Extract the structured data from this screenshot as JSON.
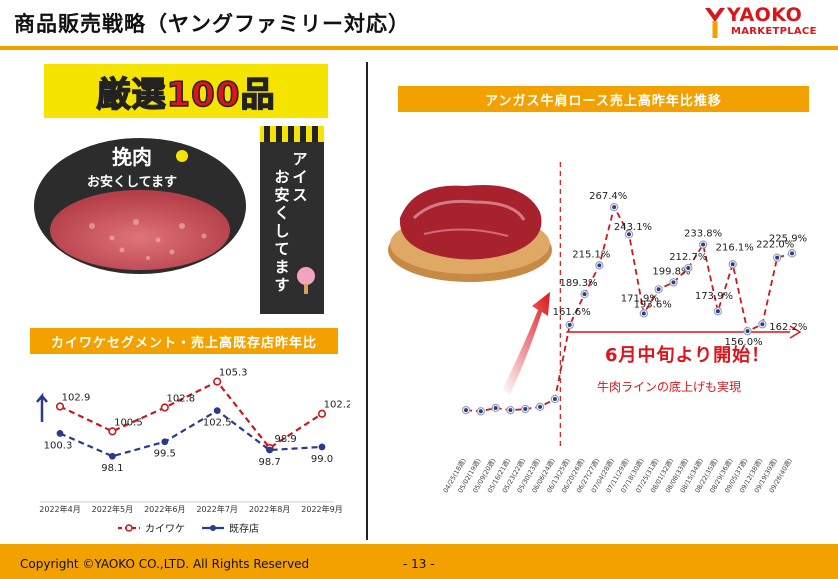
{
  "header": {
    "title": "商品販売戦略（ヤングファミリー対応）",
    "logo_main": "YAOKO",
    "logo_sub": "MARKETPLACE"
  },
  "left": {
    "banner_text": "厳選100品",
    "ground_meat_badge": [
      "挽肉",
      "お安くしてます"
    ],
    "ice_poster": "アイスお安くしてます"
  },
  "right": {
    "callout_main": "6月中旬より開始！",
    "callout_sub": "牛肉ラインの底上げも実現"
  },
  "footer": {
    "copyright": "Copyright ©YAOKO CO.,LTD. All Rights Reserved",
    "page": "- 13 -"
  },
  "colors": {
    "accent": "#f2a100",
    "red": "#d9161b",
    "navy": "#2b3a8c",
    "series_red": "#c9191f"
  },
  "chart_data": [
    {
      "type": "line",
      "title": "カイワケセグメント・売上高既存店昨年比",
      "categories": [
        "2022年4月",
        "2022年5月",
        "2022年6月",
        "2022年7月",
        "2022年8月",
        "2022年9月"
      ],
      "series": [
        {
          "name": "カイワケ",
          "values": [
            102.9,
            100.5,
            102.8,
            105.3,
            98.9,
            102.2
          ],
          "color": "#c9191f",
          "labels": [
            "102.9",
            "100.5",
            "102.8",
            "105.3",
            "98.9",
            "102.2"
          ]
        },
        {
          "name": "既存店",
          "values": [
            100.3,
            98.1,
            99.5,
            102.5,
            98.7,
            99.0
          ],
          "color": "#2b3a8c",
          "labels": [
            "100.3",
            "98.1",
            "99.5",
            "102.5",
            "98.7",
            "99.0"
          ]
        }
      ],
      "ylim": [
        96,
        107
      ],
      "legend": "bottom"
    },
    {
      "type": "line",
      "title": "アンガス牛肩ロース売上高昨年比推移",
      "x": [
        "04/25(18週)",
        "05/02(19週)",
        "05/09(20週)",
        "05/16(21週)",
        "05/23(22週)",
        "05/30(23週)",
        "06/06(24週)",
        "06/13(25週)",
        "06/20(26週)",
        "06/27(27週)",
        "07/04(28週)",
        "07/11(29週)",
        "07/18(30週)",
        "07/25(31週)",
        "08/01(32週)",
        "08/08(33週)",
        "08/15(34週)",
        "08/22(35週)",
        "08/29(36週)",
        "09/05(37週)",
        "09/12(38週)",
        "09/19(39週)",
        "09/26(40週)"
      ],
      "values": [
        85,
        84,
        87,
        85,
        86,
        88,
        95,
        161.6,
        189.3,
        215.1,
        267.4,
        243.1,
        171.9,
        193.6,
        199.8,
        212.7,
        233.8,
        173.9,
        216.1,
        156.0,
        162.2,
        222.0,
        225.9
      ],
      "labels": [
        "",
        "",
        "",
        "",
        "",
        "",
        "",
        "161.6%",
        "189.3%",
        "215.1%",
        "267.4%",
        "243.1%",
        "171.9%",
        "193.6%",
        "199.8%",
        "212.7%",
        "233.8%",
        "173.9%",
        "216.1%",
        "156.0%",
        "162.2%",
        "222.0%",
        "225.9%"
      ],
      "ylim": [
        60,
        290
      ],
      "start_marker_index": 7
    }
  ]
}
